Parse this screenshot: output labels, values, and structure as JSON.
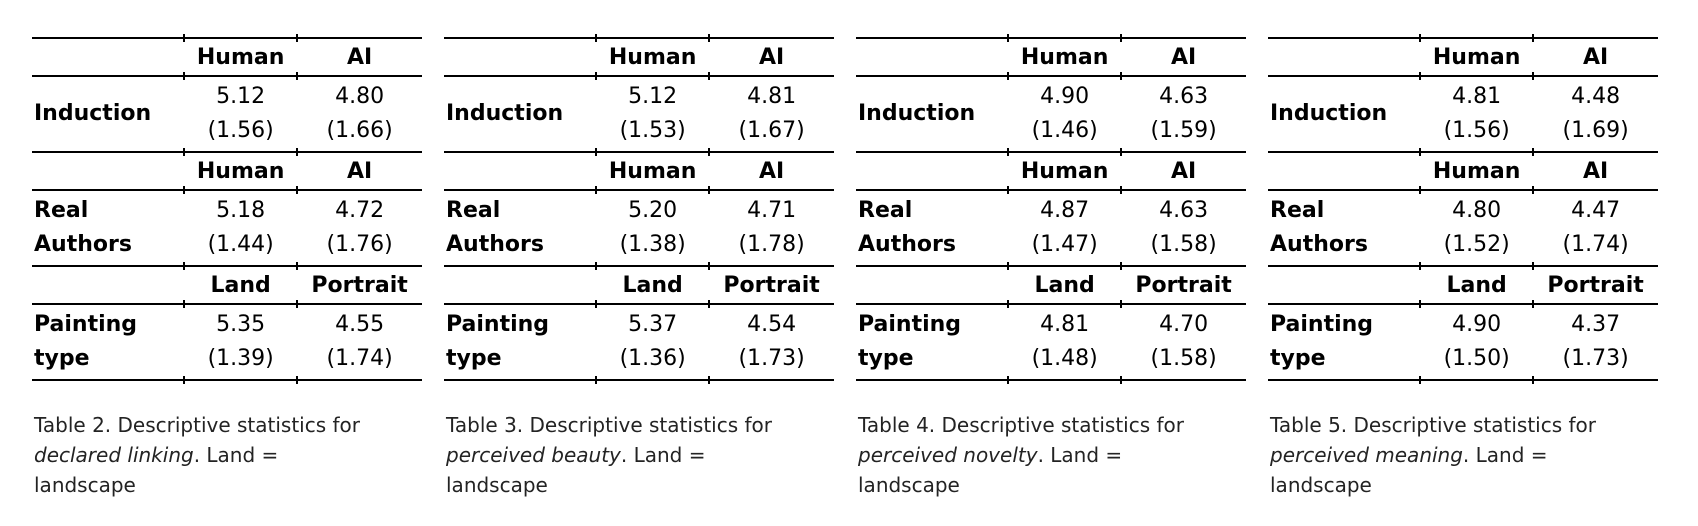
{
  "colors": {
    "background": "#ffffff",
    "table_text": "#000000",
    "rule": "#000000",
    "caption_text": "#232323"
  },
  "tables": [
    {
      "sections": [
        {
          "col1": "Human",
          "col2": "AI",
          "label": "Induction",
          "v1": "5.12",
          "sd1": "(1.56)",
          "v2": "4.80",
          "sd2": "(1.66)"
        },
        {
          "col1": "Human",
          "col2": "AI",
          "label": "Real Authors",
          "v1": "5.18",
          "sd1": "(1.44)",
          "v2": "4.72",
          "sd2": "(1.76)"
        },
        {
          "col1": "Land",
          "col2": "Portrait",
          "label": "Painting type",
          "v1": "5.35",
          "sd1": "(1.39)",
          "v2": "4.55",
          "sd2": "(1.74)"
        }
      ],
      "caption": {
        "line1": "Table 2. Descriptive statistics for",
        "italic": "declared linking",
        "after_italic": ". Land =",
        "line3": "landscape"
      }
    },
    {
      "sections": [
        {
          "col1": "Human",
          "col2": "AI",
          "label": "Induction",
          "v1": "5.12",
          "sd1": "(1.53)",
          "v2": "4.81",
          "sd2": "(1.67)"
        },
        {
          "col1": "Human",
          "col2": "AI",
          "label": "Real Authors",
          "v1": "5.20",
          "sd1": "(1.38)",
          "v2": "4.71",
          "sd2": "(1.78)"
        },
        {
          "col1": "Land",
          "col2": "Portrait",
          "label": "Painting type",
          "v1": "5.37",
          "sd1": "(1.36)",
          "v2": "4.54",
          "sd2": "(1.73)"
        }
      ],
      "caption": {
        "line1": "Table 3. Descriptive statistics for",
        "italic": "perceived beauty",
        "after_italic": ". Land =",
        "line3": "landscape"
      }
    },
    {
      "sections": [
        {
          "col1": "Human",
          "col2": "AI",
          "label": "Induction",
          "v1": "4.90",
          "sd1": "(1.46)",
          "v2": "4.63",
          "sd2": "(1.59)"
        },
        {
          "col1": "Human",
          "col2": "AI",
          "label": "Real Authors",
          "v1": "4.87",
          "sd1": "(1.47)",
          "v2": "4.63",
          "sd2": "(1.58)"
        },
        {
          "col1": "Land",
          "col2": "Portrait",
          "label": "Painting type",
          "v1": "4.81",
          "sd1": "(1.48)",
          "v2": "4.70",
          "sd2": "(1.58)"
        }
      ],
      "caption": {
        "line1": "Table 4. Descriptive statistics for",
        "italic": "perceived novelty",
        "after_italic": ". Land =",
        "line3": "landscape"
      }
    },
    {
      "sections": [
        {
          "col1": "Human",
          "col2": "AI",
          "label": "Induction",
          "v1": "4.81",
          "sd1": "(1.56)",
          "v2": "4.48",
          "sd2": "(1.69)"
        },
        {
          "col1": "Human",
          "col2": "AI",
          "label": "Real Authors",
          "v1": "4.80",
          "sd1": "(1.52)",
          "v2": "4.47",
          "sd2": "(1.74)"
        },
        {
          "col1": "Land",
          "col2": "Portrait",
          "label": "Painting type",
          "v1": "4.90",
          "sd1": "(1.50)",
          "v2": "4.37",
          "sd2": "(1.73)"
        }
      ],
      "caption": {
        "line1": "Table 5. Descriptive statistics for",
        "italic": "perceived meaning",
        "after_italic": ". Land =",
        "line3": "landscape"
      }
    }
  ]
}
